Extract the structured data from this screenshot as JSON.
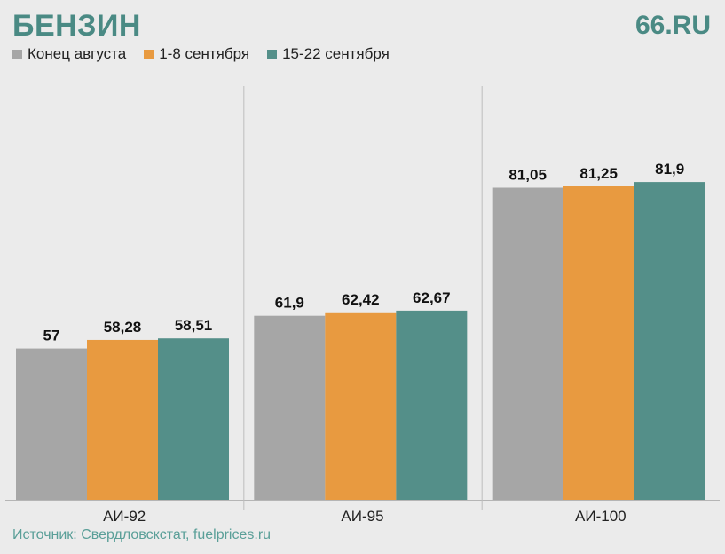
{
  "header": {
    "title": "БЕНЗИН",
    "brand": "66.RU"
  },
  "source": "Источник: Свердловскстат, fuelprices.ru",
  "colors": {
    "series_1": "#a6a6a6",
    "series_2": "#e89a40",
    "series_3": "#548f89",
    "title": "#4a8a84"
  },
  "chart_data": {
    "type": "bar",
    "title": "БЕНЗИН",
    "categories": [
      "АИ-92",
      "АИ-95",
      "АИ-100"
    ],
    "series": [
      {
        "name": "Конец августа",
        "values": [
          57,
          61.9,
          81.05
        ],
        "labels": [
          "57",
          "61,9",
          "81,05"
        ]
      },
      {
        "name": "1-8 сентября",
        "values": [
          58.28,
          62.42,
          81.25
        ],
        "labels": [
          "58,28",
          "62,42",
          "81,25"
        ]
      },
      {
        "name": "15-22 сентября",
        "values": [
          58.51,
          62.67,
          81.9
        ],
        "labels": [
          "58,51",
          "62,67",
          "81,9"
        ]
      }
    ],
    "xlabel": "",
    "ylabel": "",
    "grid": false,
    "legend": "top-left"
  }
}
